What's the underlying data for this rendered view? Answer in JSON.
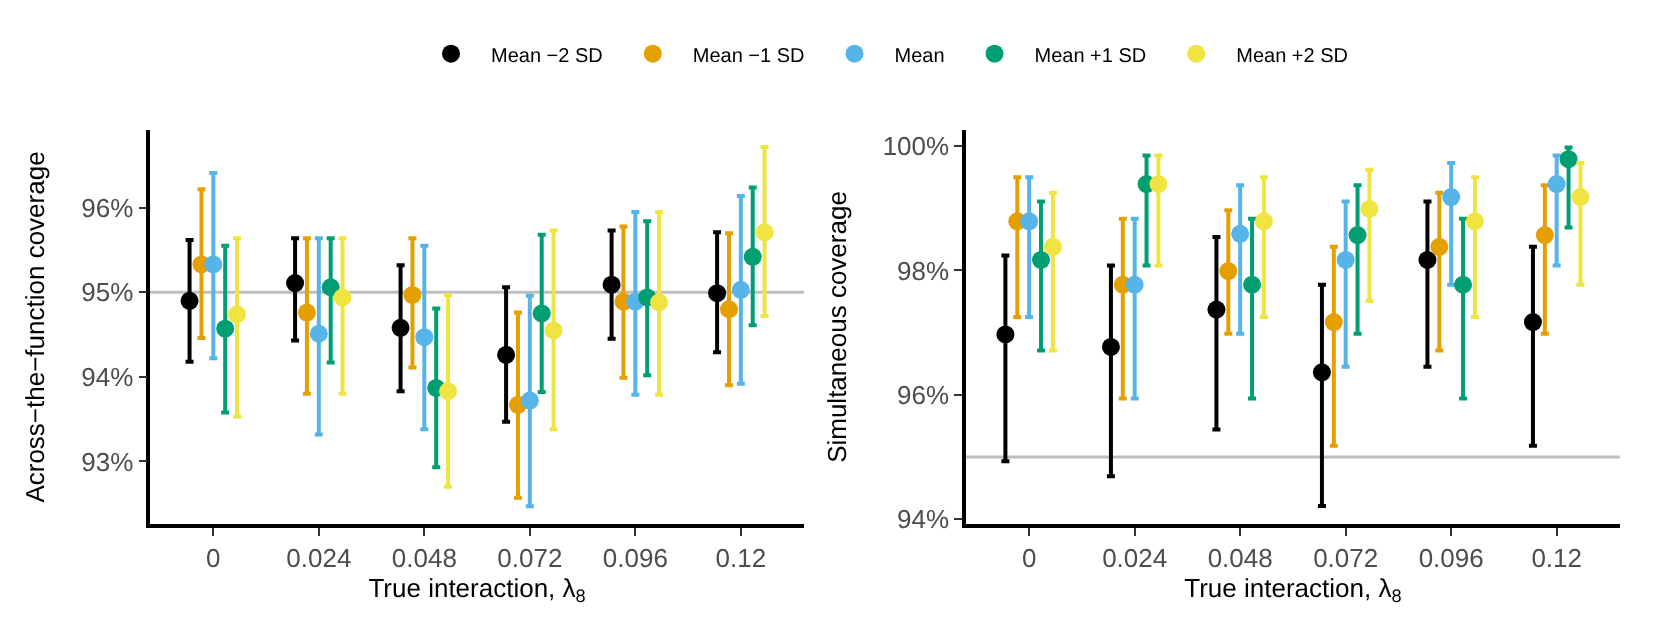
{
  "chart_data": [
    {
      "type": "scatter",
      "xlabel": "True interaction, λ$_{8}$",
      "ylabel": "Across−the−function coverage",
      "categories": [
        "0",
        "0.024",
        "0.048",
        "0.072",
        "0.096",
        "0.12"
      ],
      "ylim": [
        92.26,
        96.92
      ],
      "yticks": [
        {
          "value": 93,
          "label": "93%"
        },
        {
          "value": 94,
          "label": "94%"
        },
        {
          "value": 95,
          "label": "95%"
        },
        {
          "value": 96,
          "label": "96%"
        }
      ],
      "marker": "circle",
      "grid": false,
      "legend": "top",
      "ref_lines": [
        {
          "axis": "y",
          "value": 95,
          "color": "#bebebe"
        }
      ],
      "series": [
        {
          "name": "Mean −2 SD",
          "color": "#000000",
          "values": [
            94.9,
            95.11,
            94.58,
            94.26,
            95.09,
            94.99
          ],
          "errors": [
            [
              94.18,
              95.62
            ],
            [
              94.43,
              95.64
            ],
            [
              93.83,
              95.32
            ],
            [
              93.47,
              95.06
            ],
            [
              94.45,
              95.73
            ],
            [
              94.29,
              95.71
            ]
          ]
        },
        {
          "name": "Mean −1 SD",
          "color": "#e69f00",
          "values": [
            95.33,
            94.76,
            94.97,
            93.67,
            94.89,
            94.8
          ],
          "errors": [
            [
              94.46,
              96.22
            ],
            [
              93.8,
              95.64
            ],
            [
              94.11,
              95.64
            ],
            [
              92.57,
              94.76
            ],
            [
              93.99,
              95.78
            ],
            [
              93.9,
              95.7
            ]
          ]
        },
        {
          "name": "Mean",
          "color": "#56b4e9",
          "values": [
            95.33,
            94.51,
            94.47,
            93.72,
            94.89,
            95.03
          ],
          "errors": [
            [
              94.22,
              96.41
            ],
            [
              93.32,
              95.64
            ],
            [
              93.38,
              95.55
            ],
            [
              92.47,
              94.96
            ],
            [
              93.79,
              95.95
            ],
            [
              93.92,
              96.14
            ]
          ]
        },
        {
          "name": "Mean +1 SD",
          "color": "#009e73",
          "values": [
            94.57,
            95.06,
            93.87,
            94.75,
            94.94,
            95.42
          ],
          "errors": [
            [
              93.58,
              95.55
            ],
            [
              94.17,
              95.64
            ],
            [
              92.93,
              94.81
            ],
            [
              93.82,
              95.68
            ],
            [
              94.02,
              95.84
            ],
            [
              94.61,
              96.24
            ]
          ]
        },
        {
          "name": "Mean +2 SD",
          "color": "#f0e442",
          "values": [
            94.74,
            94.94,
            93.83,
            94.55,
            94.88,
            95.71
          ],
          "errors": [
            [
              93.53,
              95.64
            ],
            [
              93.8,
              95.64
            ],
            [
              92.7,
              94.97
            ],
            [
              93.38,
              95.73
            ],
            [
              93.79,
              95.95
            ],
            [
              94.72,
              96.72
            ]
          ]
        }
      ]
    },
    {
      "type": "scatter",
      "xlabel": "True interaction, λ$_{8}$",
      "ylabel": "Simultaneous coverage",
      "categories": [
        "0",
        "0.024",
        "0.048",
        "0.072",
        "0.096",
        "0.12"
      ],
      "ylim": [
        93.92,
        100.26
      ],
      "yticks": [
        {
          "value": 94,
          "label": "94%"
        },
        {
          "value": 96,
          "label": "96%"
        },
        {
          "value": 98,
          "label": "98%"
        },
        {
          "value": 100,
          "label": "100%"
        }
      ],
      "marker": "circle",
      "grid": false,
      "ref_lines": [
        {
          "axis": "y",
          "value": 95,
          "color": "#bebebe"
        }
      ],
      "series": [
        {
          "color": "#000000",
          "values": [
            96.97,
            96.77,
            97.37,
            96.36,
            98.17,
            97.17
          ],
          "errors": [
            [
              94.93,
              98.24
            ],
            [
              94.69,
              98.08
            ],
            [
              95.44,
              98.54
            ],
            [
              94.21,
              97.77
            ],
            [
              96.45,
              99.11
            ],
            [
              95.18,
              98.38
            ]
          ]
        },
        {
          "color": "#e69f00",
          "values": [
            98.79,
            97.77,
            97.99,
            97.17,
            98.38,
            98.57
          ],
          "errors": [
            [
              97.25,
              99.5
            ],
            [
              95.94,
              98.83
            ],
            [
              96.98,
              98.97
            ],
            [
              95.18,
              98.38
            ],
            [
              96.71,
              99.25
            ],
            [
              96.98,
              99.37
            ]
          ]
        },
        {
          "color": "#56b4e9",
          "values": [
            98.79,
            97.77,
            98.59,
            98.17,
            99.18,
            99.39
          ],
          "errors": [
            [
              97.25,
              99.5
            ],
            [
              95.94,
              98.83
            ],
            [
              96.98,
              99.37
            ],
            [
              96.45,
              99.11
            ],
            [
              97.77,
              99.73
            ],
            [
              98.08,
              99.85
            ]
          ]
        },
        {
          "color": "#009e73",
          "values": [
            98.17,
            99.39,
            97.77,
            98.57,
            97.77,
            99.79
          ],
          "errors": [
            [
              96.71,
              99.11
            ],
            [
              98.08,
              99.85
            ],
            [
              95.94,
              98.83
            ],
            [
              96.98,
              99.37
            ],
            [
              95.94,
              98.83
            ],
            [
              98.69,
              99.98
            ]
          ]
        },
        {
          "color": "#f0e442",
          "values": [
            98.38,
            99.39,
            98.79,
            98.99,
            98.79,
            99.18
          ],
          "errors": [
            [
              96.71,
              99.25
            ],
            [
              98.08,
              99.85
            ],
            [
              97.25,
              99.5
            ],
            [
              97.51,
              99.62
            ],
            [
              97.25,
              99.5
            ],
            [
              97.77,
              99.73
            ]
          ]
        }
      ]
    }
  ]
}
